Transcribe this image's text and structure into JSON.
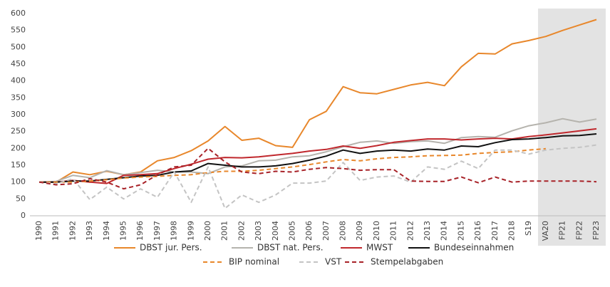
{
  "chart_data": {
    "type": "line",
    "categories": [
      "1990",
      "1991",
      "1992",
      "1993",
      "1994",
      "1995",
      "1996",
      "1997",
      "1998",
      "1999",
      "2000",
      "2001",
      "2002",
      "2003",
      "2004",
      "2005",
      "2006",
      "2007",
      "2008",
      "2009",
      "2010",
      "2011",
      "2012",
      "2013",
      "2014",
      "2015",
      "2016",
      "2017",
      "2018",
      "S19",
      "VA20",
      "FP21",
      "FP22",
      "FP23"
    ],
    "ylim": [
      0,
      600
    ],
    "yticks": [
      0,
      50,
      100,
      150,
      200,
      250,
      300,
      350,
      400,
      450,
      500,
      550,
      600
    ],
    "grid": false,
    "series": [
      {
        "name": "DBST jur. Pers.",
        "color": "#e8872b",
        "dashed": false,
        "values": [
          100,
          100,
          130,
          122,
          132,
          122,
          130,
          163,
          173,
          193,
          222,
          265,
          224,
          230,
          208,
          203,
          285,
          310,
          383,
          365,
          362,
          375,
          388,
          396,
          386,
          442,
          482,
          480,
          510,
          520,
          532,
          550,
          566,
          582
        ]
      },
      {
        "name": "DBST nat. Pers.",
        "color": "#b5b3ad",
        "dashed": false,
        "values": [
          100,
          102,
          120,
          113,
          134,
          122,
          128,
          135,
          130,
          130,
          125,
          145,
          148,
          163,
          165,
          175,
          178,
          190,
          205,
          218,
          222,
          215,
          220,
          222,
          215,
          232,
          235,
          233,
          252,
          267,
          276,
          288,
          278,
          287
        ]
      },
      {
        "name": "MWST",
        "color": "#c0282d",
        "dashed": false,
        "values": [
          100,
          100,
          105,
          100,
          96,
          120,
          122,
          125,
          140,
          153,
          168,
          173,
          172,
          175,
          180,
          185,
          192,
          197,
          207,
          200,
          208,
          218,
          223,
          228,
          228,
          225,
          228,
          230,
          228,
          235,
          240,
          246,
          252,
          258
        ]
      },
      {
        "name": "Bundeseinnahmen",
        "color": "#111111",
        "dashed": false,
        "values": [
          100,
          100,
          103,
          103,
          108,
          113,
          118,
          120,
          130,
          133,
          155,
          150,
          145,
          145,
          148,
          155,
          165,
          177,
          195,
          185,
          192,
          195,
          192,
          198,
          195,
          207,
          205,
          217,
          226,
          228,
          232,
          237,
          238,
          243
        ]
      },
      {
        "name": "BIP nominal",
        "color": "#e8872b",
        "dashed": true,
        "values": [
          100,
          100,
          100,
          103,
          107,
          112,
          115,
          117,
          120,
          122,
          128,
          132,
          132,
          135,
          140,
          145,
          152,
          160,
          167,
          163,
          169,
          173,
          175,
          178,
          179,
          180,
          185,
          188,
          190,
          195,
          199,
          null,
          null,
          null
        ]
      },
      {
        "name": "VST",
        "color": "#c4c4c4",
        "dashed": true,
        "values": [
          100,
          95,
          110,
          48,
          85,
          50,
          80,
          55,
          130,
          40,
          145,
          22,
          62,
          40,
          62,
          97,
          97,
          103,
          158,
          105,
          115,
          118,
          100,
          145,
          138,
          162,
          140,
          195,
          195,
          183,
          195,
          200,
          203,
          210
        ]
      },
      {
        "name": "Stempelabgaben",
        "color": "#a82228",
        "dashed": true,
        "values": [
          100,
          92,
          95,
          110,
          100,
          80,
          92,
          122,
          145,
          150,
          200,
          160,
          130,
          125,
          132,
          130,
          138,
          143,
          140,
          135,
          137,
          137,
          103,
          102,
          102,
          115,
          98,
          115,
          100,
          103,
          103,
          103,
          103,
          101
        ]
      }
    ]
  }
}
